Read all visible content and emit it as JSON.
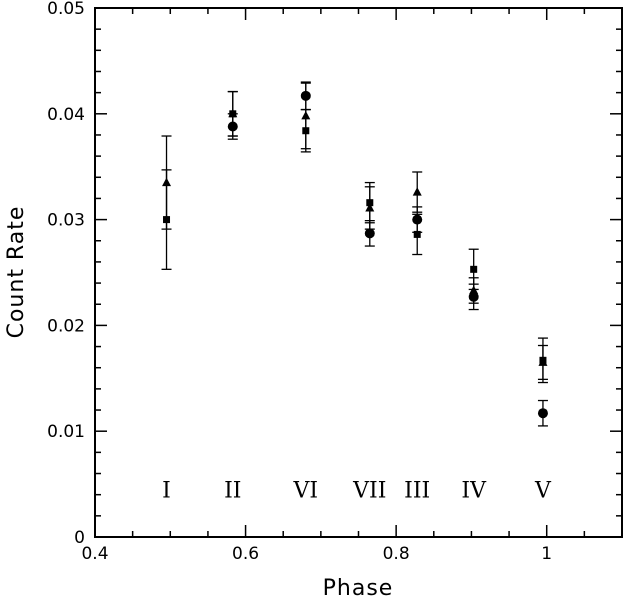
{
  "chart_data": {
    "type": "scatter",
    "xlabel": "Phase",
    "ylabel": "Count Rate",
    "xlim": [
      0.4,
      1.1
    ],
    "ylim": [
      0,
      0.05
    ],
    "xticks": [
      0.4,
      0.6,
      0.8,
      1.0
    ],
    "xtick_labels": [
      "0.4",
      "0.6",
      "0.8",
      "1"
    ],
    "yticks": [
      0,
      0.01,
      0.02,
      0.03,
      0.04,
      0.05
    ],
    "ytick_labels": [
      "0",
      "0.01",
      "0.02",
      "0.03",
      "0.04",
      "0.05"
    ],
    "x_minor_step": 0.05,
    "y_minor_step": 0.002,
    "grid": false,
    "phase_labels": [
      {
        "text": "I",
        "x": 0.495
      },
      {
        "text": "II",
        "x": 0.583
      },
      {
        "text": "VI",
        "x": 0.68
      },
      {
        "text": "VII",
        "x": 0.765
      },
      {
        "text": "III",
        "x": 0.828
      },
      {
        "text": "IV",
        "x": 0.903
      },
      {
        "text": "V",
        "x": 0.995
      }
    ],
    "phase_label_y": 0.0045,
    "series": [
      {
        "marker": "square",
        "points": [
          {
            "x": 0.495,
            "y": 0.03,
            "err": 0.0047
          },
          {
            "x": 0.583,
            "y": 0.04,
            "err": 0.0021
          },
          {
            "x": 0.68,
            "y": 0.0384,
            "err": 0.002
          },
          {
            "x": 0.765,
            "y": 0.0316,
            "err": 0.0019
          },
          {
            "x": 0.828,
            "y": 0.0286,
            "err": 0.0019
          },
          {
            "x": 0.903,
            "y": 0.0253,
            "err": 0.0019
          },
          {
            "x": 0.995,
            "y": 0.0167,
            "err": 0.0021
          }
        ]
      },
      {
        "marker": "triangle",
        "points": [
          {
            "x": 0.495,
            "y": 0.0335,
            "err": 0.0044
          },
          {
            "x": 0.583,
            "y": 0.04,
            "err": 0.0021
          },
          {
            "x": 0.68,
            "y": 0.0398,
            "err": 0.0031
          },
          {
            "x": 0.765,
            "y": 0.0311,
            "err": 0.002
          },
          {
            "x": 0.828,
            "y": 0.0326,
            "err": 0.0019
          },
          {
            "x": 0.903,
            "y": 0.0233,
            "err": 0.0012
          },
          {
            "x": 0.995,
            "y": 0.0165,
            "err": 0.0016
          }
        ]
      },
      {
        "marker": "circle",
        "points": [
          {
            "x": 0.583,
            "y": 0.0388,
            "err": 0.0012
          },
          {
            "x": 0.68,
            "y": 0.0417,
            "err": 0.0013
          },
          {
            "x": 0.765,
            "y": 0.0287,
            "err": 0.0012
          },
          {
            "x": 0.828,
            "y": 0.03,
            "err": 0.0012
          },
          {
            "x": 0.903,
            "y": 0.0227,
            "err": 0.0012
          },
          {
            "x": 0.995,
            "y": 0.0117,
            "err": 0.0012
          }
        ]
      }
    ]
  }
}
